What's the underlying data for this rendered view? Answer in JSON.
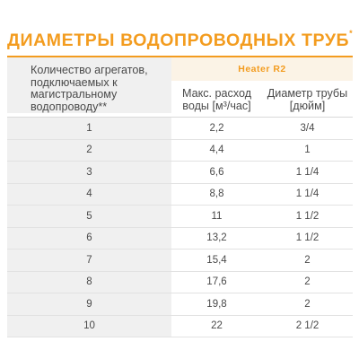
{
  "title": "ДИАМЕТРЫ ВОДОПРОВОДНЫХ ТРУБ",
  "title_mark": "*",
  "table": {
    "col0_header": "Количество агрегатов, подключаемых к магистральному водопроводу**",
    "model": "Heater R2",
    "col1_header": "Макс. расход воды [м³/час]",
    "col2_header": "Диаметр трубы [дюйм]",
    "rows": [
      [
        "1",
        "2,2",
        "3/4"
      ],
      [
        "2",
        "4,4",
        "1"
      ],
      [
        "3",
        "6,6",
        "1 1/4"
      ],
      [
        "4",
        "8,8",
        "1 1/4"
      ],
      [
        "5",
        "11",
        "1 1/2"
      ],
      [
        "6",
        "13,2",
        "1 1/2"
      ],
      [
        "7",
        "15,4",
        "2"
      ],
      [
        "8",
        "17,6",
        "2"
      ],
      [
        "9",
        "19,8",
        "2"
      ],
      [
        "10",
        "22",
        "2 1/2"
      ]
    ]
  },
  "colors": {
    "accent": "#f39c1f",
    "text": "#4a4a4a",
    "shade": "#f0f0f0",
    "model_bg": "#fbf3e6"
  }
}
